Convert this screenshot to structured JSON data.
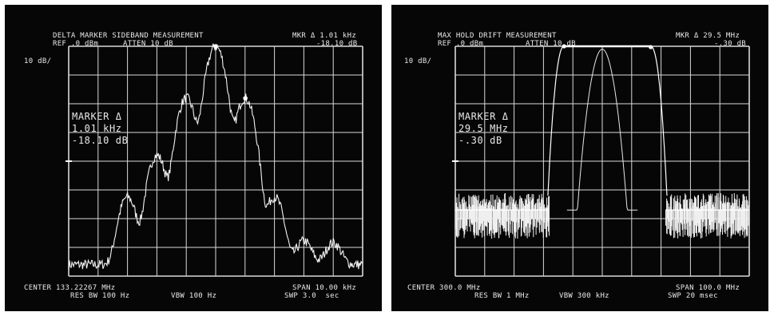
{
  "panels": [
    {
      "title": "DELTA MARKER SIDEBAND MEASUREMENT",
      "ref": "REF .0 dBm",
      "atten": "ATTEN 10 dB",
      "mkr_top": "MKR Δ 1.01 kHz",
      "mkr_val": "-18.10 dB",
      "scale": "10 dB/",
      "marker_title": "MARKER Δ",
      "marker_freq": "1.01 kHz",
      "marker_db": "-18.10 dB",
      "center": "CENTER 133.22267 MHz",
      "span": "SPAN 10.00 kHz",
      "res_bw": "RES BW 100 Hz",
      "vbw": "VBW 100 Hz",
      "swp": "SWP 3.0  sec"
    },
    {
      "title": "MAX HOLD DRIFT MEASUREMENT",
      "ref": "REF .0 dBm",
      "atten": "ATTEN 10 dB",
      "mkr_top": "MKR Δ 29.5 MHz",
      "mkr_val": "-.30 dB",
      "scale": "10 dB/",
      "marker_title": "MARKER Δ",
      "marker_freq": "29.5 MHz",
      "marker_db": "-.30 dB",
      "center": "CENTER 300.0 MHz",
      "span": "SPAN 100.0 MHz",
      "res_bw": "RES BW 1 MHz",
      "vbw": "VBW 300 kHz",
      "swp": "SWP 20 msec"
    }
  ],
  "chart_data": [
    {
      "type": "line",
      "x": [
        -5,
        -4,
        -3,
        -2,
        -1,
        0,
        1,
        2,
        3,
        4,
        5
      ],
      "y_ref": 0,
      "y_scale_db_per_div": 10,
      "series": [
        {
          "peaks": [
            {
              "x": -3.0,
              "y": -53
            },
            {
              "x": -2.0,
              "y": -38
            },
            {
              "x": -1.0,
              "y": -18
            },
            {
              "x": 0.0,
              "y": 0
            },
            {
              "x": 1.0,
              "y": -18
            },
            {
              "x": 2.0,
              "y": -53
            },
            {
              "x": 3.0,
              "y": -72
            },
            {
              "x": 4.0,
              "y": -73
            }
          ],
          "noise_floor": -76
        }
      ],
      "markers": [
        {
          "x": 0.0,
          "y": 0.0
        },
        {
          "x": 1.01,
          "y": -18.1
        }
      ],
      "grid": true
    },
    {
      "type": "line",
      "x_range_mhz": [
        250,
        350
      ],
      "y_ref": 0,
      "y_scale_db_per_div": 10,
      "series": [
        {
          "max_hold": [
            {
              "x": 281.5,
              "y": -52
            },
            {
              "x": 287.0,
              "y": 0
            },
            {
              "x": 316.5,
              "y": 0
            },
            {
              "x": 322.0,
              "y": -52
            }
          ],
          "single_sweep_peak": {
            "x": 300.0,
            "y": -1
          },
          "noise_floor": -57
        }
      ],
      "markers": [
        {
          "x": 287.0,
          "y": 0.0
        },
        {
          "x": 316.5,
          "y": -0.3
        }
      ],
      "grid": true
    }
  ]
}
